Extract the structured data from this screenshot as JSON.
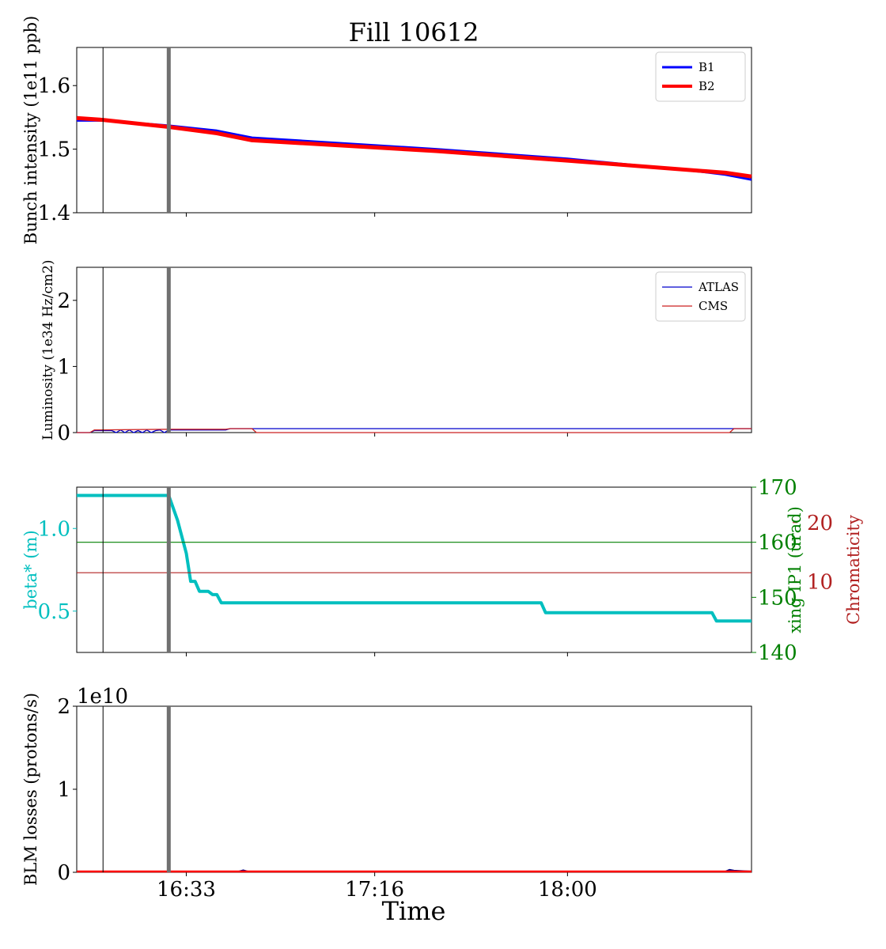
{
  "figure": {
    "title": "Fill 10612",
    "xlabel": "Time"
  },
  "colors": {
    "b1": "#0000ff",
    "b2": "#ff0000",
    "atlas": "#0000cc",
    "cms": "#cc2222",
    "beta": "#00bfbf",
    "xing": "#008000",
    "chroma": "#b22222",
    "vline": "#000000",
    "vline_thick": "#707070"
  },
  "chart_data": [
    {
      "type": "line",
      "xaxis": "time",
      "xlim": [
        "16:08",
        "18:42"
      ],
      "xticks": [
        "16:33",
        "17:16",
        "18:00"
      ],
      "vlines": [
        "16:14",
        "16:29"
      ],
      "ylabel": "Bunch intensity (1e11 ppb)",
      "ylim": [
        1.4,
        1.66
      ],
      "yticks": [
        "1.4",
        "1.5",
        "1.6"
      ],
      "legend": {
        "position": "top-right"
      },
      "series": [
        {
          "name": "B1",
          "x": [
            "16:08",
            "16:14",
            "16:29",
            "16:40",
            "16:48",
            "17:30",
            "18:00",
            "18:30",
            "18:36",
            "18:42"
          ],
          "y": [
            1.545,
            1.545,
            1.537,
            1.529,
            1.518,
            1.5,
            1.485,
            1.465,
            1.46,
            1.452
          ]
        },
        {
          "name": "B2",
          "x": [
            "16:08",
            "16:14",
            "16:29",
            "16:40",
            "16:48",
            "17:30",
            "18:00",
            "18:30",
            "18:36",
            "18:42"
          ],
          "y": [
            1.549,
            1.546,
            1.535,
            1.525,
            1.514,
            1.497,
            1.482,
            1.466,
            1.463,
            1.457
          ]
        }
      ]
    },
    {
      "type": "line",
      "xaxis": "time",
      "xlim": [
        "16:08",
        "18:42"
      ],
      "xticks": [
        "16:33",
        "17:16",
        "18:00"
      ],
      "vlines": [
        "16:14",
        "16:29"
      ],
      "ylabel": "Luminosity (1e34 Hz/cm2)",
      "ylim": [
        0,
        2.5
      ],
      "yticks": [
        "0",
        "1",
        "2"
      ],
      "legend": {
        "position": "top-right"
      },
      "series": [
        {
          "name": "ATLAS",
          "x": [
            "16:08",
            "16:11",
            "16:12",
            "16:16",
            "16:17",
            "16:18",
            "16:19",
            "16:20",
            "16:21",
            "16:22",
            "16:23",
            "16:24",
            "16:25",
            "16:26",
            "16:27",
            "16:28",
            "16:29",
            "16:42",
            "16:43",
            "16:48",
            "18:42"
          ],
          "y": [
            0,
            0,
            0.03,
            0.03,
            0.0,
            0.04,
            0.0,
            0.04,
            0.0,
            0.03,
            0.0,
            0.04,
            0.0,
            0.03,
            0.04,
            0.0,
            0.04,
            0.04,
            0.06,
            0.06,
            0.06
          ]
        },
        {
          "name": "CMS",
          "x": [
            "16:08",
            "16:11",
            "16:12",
            "16:29",
            "16:32",
            "16:42",
            "16:43",
            "16:48",
            "16:49",
            "18:37",
            "18:38",
            "18:42"
          ],
          "y": [
            0,
            0,
            0.04,
            0.05,
            0.05,
            0.05,
            0.06,
            0.06,
            0.0,
            0.0,
            0.06,
            0.06
          ]
        }
      ]
    },
    {
      "type": "line",
      "xaxis": "time",
      "xlim": [
        "16:08",
        "18:42"
      ],
      "xticks": [
        "16:33",
        "17:16",
        "18:00"
      ],
      "vlines": [
        "16:14",
        "16:29"
      ],
      "ylabel": "beta* (m)",
      "ylim": [
        0.25,
        1.25
      ],
      "yticks": [
        "0.5",
        "1.0"
      ],
      "right_axes": [
        {
          "label": "xing IP1 (urad)",
          "ylim": [
            140,
            170
          ],
          "yticks": [
            "140",
            "150",
            "160",
            "170"
          ]
        },
        {
          "label": "Chromaticity",
          "ylim": [
            -2,
            26
          ],
          "yticks": [
            "10",
            "20"
          ]
        }
      ],
      "series": [
        {
          "axis": "beta",
          "x": [
            "16:08",
            "16:29",
            "16:31",
            "16:33",
            "16:34",
            "16:35",
            "16:36",
            "16:38",
            "16:39",
            "16:40",
            "16:41",
            "16:42",
            "17:54",
            "17:55",
            "18:33",
            "18:34",
            "18:42"
          ],
          "y": [
            1.2,
            1.2,
            1.05,
            0.85,
            0.68,
            0.68,
            0.62,
            0.62,
            0.6,
            0.6,
            0.55,
            0.55,
            0.55,
            0.49,
            0.49,
            0.44,
            0.44
          ]
        },
        {
          "axis": "xing",
          "x": [
            "16:08",
            "18:42"
          ],
          "y": [
            160,
            160
          ]
        },
        {
          "axis": "chromaticity",
          "x": [
            "16:08",
            "18:42"
          ],
          "y": [
            11.5,
            11.5
          ]
        }
      ]
    },
    {
      "type": "line",
      "xaxis": "time",
      "xlim": [
        "16:08",
        "18:42"
      ],
      "xticks": [
        "16:33",
        "17:16",
        "18:00"
      ],
      "vlines": [
        "16:14",
        "16:29"
      ],
      "ylabel": "BLM losses (protons/s)",
      "ylim": [
        0,
        2
      ],
      "yticks": [
        "0",
        "1",
        "2"
      ],
      "offset_text": "1e10",
      "series": [
        {
          "axis": "blm",
          "x": [
            "16:08",
            "16:45",
            "16:46",
            "16:47",
            "18:36",
            "18:37",
            "18:38",
            "18:42"
          ],
          "y": [
            0.01,
            0.01,
            0.025,
            0.01,
            0.01,
            0.03,
            0.02,
            0.01
          ]
        },
        {
          "axis": "blm",
          "x": [
            "16:08",
            "18:42"
          ],
          "y": [
            0.01,
            0.01
          ]
        }
      ]
    }
  ]
}
